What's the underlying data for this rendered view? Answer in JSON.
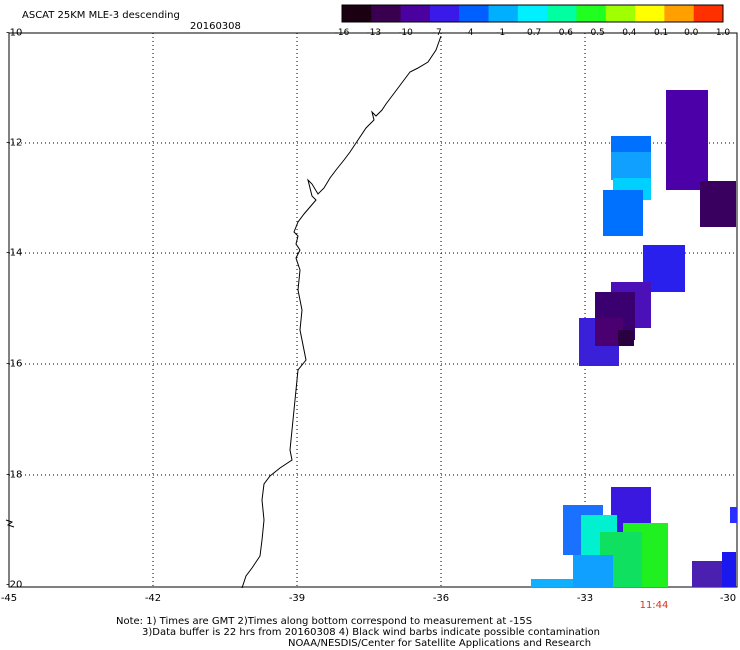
{
  "header": {
    "title": "ASCAT 25KM MLE-3 descending",
    "date": "20160308"
  },
  "colorbar": {
    "labels": [
      "-16",
      "-13",
      "-10",
      "-7",
      "-4",
      "-1",
      "-0.7",
      "-0.6",
      "-0.5",
      "-0.4",
      "-0.1",
      "0.0",
      "1.0"
    ],
    "colors": [
      "#1a0010",
      "#3a0050",
      "#4b00a0",
      "#3a1ae8",
      "#0060ff",
      "#00b0ff",
      "#00f0ff",
      "#00ffa0",
      "#20ff20",
      "#a0ff00",
      "#ffff00",
      "#ffa000",
      "#ff3000"
    ]
  },
  "axes": {
    "lon_ticks": [
      "-45",
      "-42",
      "-39",
      "-36",
      "-33",
      "-30"
    ],
    "lat_ticks": [
      "-10",
      "-12",
      "-14",
      "-16",
      "-18",
      "-20"
    ]
  },
  "time_label": "11:44",
  "notes": {
    "line1": "Note: 1) Times are GMT 2)Times along bottom correspond to measurement at -15S",
    "line2": "3)Data buffer is 22 hrs from 20160308 4) Black wind barbs indicate possible contamination",
    "line3": "NOAA/NESDIS/Center for Satellite Applications and Research"
  }
}
